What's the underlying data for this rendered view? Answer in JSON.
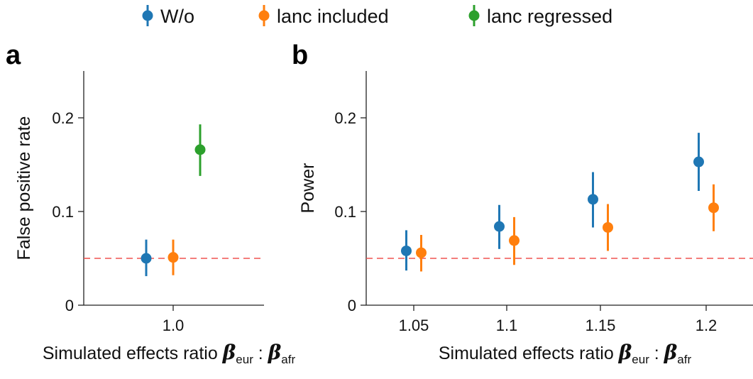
{
  "legend": [
    {
      "label": "W/o",
      "color": "#1f77b4"
    },
    {
      "label": "lanc included",
      "color": "#ff7f0e"
    },
    {
      "label": "lanc regressed",
      "color": "#2ca02c"
    }
  ],
  "reference_line": {
    "value": 0.05,
    "color": "#ef5350"
  },
  "chart_data": [
    {
      "panel": "a",
      "type": "scatter",
      "error_bars": true,
      "ylabel": "False positive rate",
      "xlabel_prefix": "Simulated effects ratio ",
      "xlabel_beta1_sub": "eur",
      "xlabel_separator": " : ",
      "xlabel_beta2_sub": "afr",
      "categories": [
        "1.0"
      ],
      "ylim": [
        0,
        0.25
      ],
      "yticks": [
        0,
        0.1,
        0.2
      ],
      "ytick_labels": [
        "0",
        "0.1",
        "0.2"
      ],
      "series": [
        {
          "name": "W/o",
          "color": "#1f77b4",
          "values": [
            0.05
          ],
          "lower": [
            0.031
          ],
          "upper": [
            0.07
          ]
        },
        {
          "name": "lanc included",
          "color": "#ff7f0e",
          "values": [
            0.051
          ],
          "lower": [
            0.032
          ],
          "upper": [
            0.07
          ]
        },
        {
          "name": "lanc regressed",
          "color": "#2ca02c",
          "values": [
            0.166
          ],
          "lower": [
            0.138
          ],
          "upper": [
            0.193
          ]
        }
      ]
    },
    {
      "panel": "b",
      "type": "scatter",
      "error_bars": true,
      "ylabel": "Power",
      "xlabel_prefix": "Simulated effects ratio ",
      "xlabel_beta1_sub": "eur",
      "xlabel_separator": " : ",
      "xlabel_beta2_sub": "afr",
      "categories": [
        "1.05",
        "1.1",
        "1.15",
        "1.2"
      ],
      "ylim": [
        0,
        0.25
      ],
      "yticks": [
        0,
        0.1,
        0.2
      ],
      "ytick_labels": [
        "0",
        "0.1",
        "0.2"
      ],
      "series": [
        {
          "name": "W/o",
          "color": "#1f77b4",
          "values": [
            0.058,
            0.084,
            0.113,
            0.153
          ],
          "lower": [
            0.037,
            0.06,
            0.083,
            0.122
          ],
          "upper": [
            0.08,
            0.107,
            0.142,
            0.184
          ]
        },
        {
          "name": "lanc included",
          "color": "#ff7f0e",
          "values": [
            0.056,
            0.069,
            0.083,
            0.104
          ],
          "lower": [
            0.036,
            0.043,
            0.058,
            0.079
          ],
          "upper": [
            0.075,
            0.094,
            0.108,
            0.129
          ]
        }
      ]
    }
  ]
}
